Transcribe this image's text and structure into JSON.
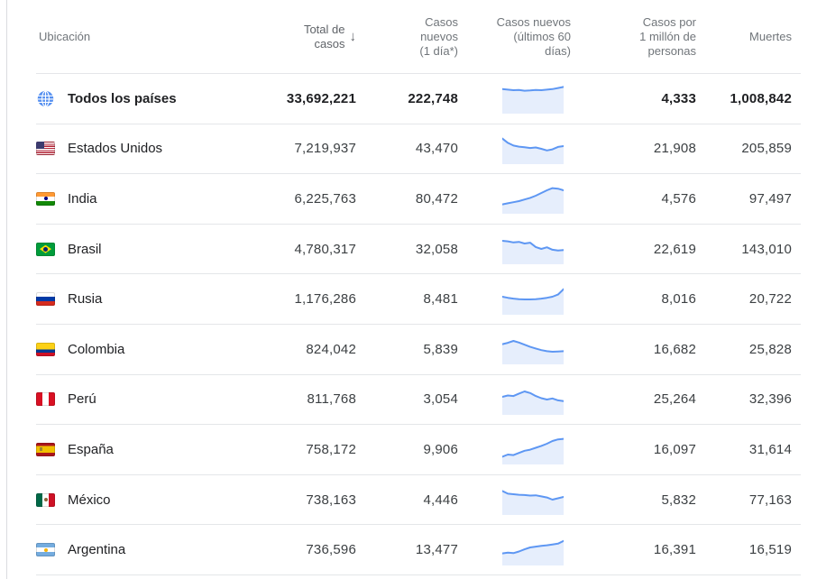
{
  "table": {
    "sort_icon": "↓",
    "columns": [
      {
        "lines": [
          "Ubicación"
        ]
      },
      {
        "lines": [
          "Total de",
          "casos"
        ],
        "sorted": true
      },
      {
        "lines": [
          "Casos",
          "nuevos",
          "(1 día*)"
        ]
      },
      {
        "lines": [
          "Casos nuevos",
          "(últimos 60",
          "días)"
        ]
      },
      {
        "lines": [
          "Casos por",
          "1 millón de",
          "personas"
        ]
      },
      {
        "lines": [
          "Muertes"
        ]
      }
    ],
    "rows": [
      {
        "location": "Todos los países",
        "flag": "globe",
        "bold": true,
        "total": "33,692,221",
        "new_1d": "222,748",
        "per_1m": "4,333",
        "deaths": "1,008,842",
        "spark": [
          0.84,
          0.82,
          0.8,
          0.81,
          0.78,
          0.79,
          0.81,
          0.8,
          0.82,
          0.84,
          0.88,
          0.92
        ]
      },
      {
        "location": "Estados Unidos",
        "flag": "us",
        "bold": false,
        "total": "7,219,937",
        "new_1d": "43,470",
        "per_1m": "21,908",
        "deaths": "205,859",
        "spark": [
          0.88,
          0.72,
          0.62,
          0.58,
          0.56,
          0.53,
          0.55,
          0.5,
          0.44,
          0.48,
          0.57,
          0.6
        ]
      },
      {
        "location": "India",
        "flag": "in",
        "bold": false,
        "total": "6,225,763",
        "new_1d": "80,472",
        "per_1m": "4,576",
        "deaths": "97,497",
        "spark": [
          0.28,
          0.32,
          0.36,
          0.4,
          0.46,
          0.52,
          0.6,
          0.7,
          0.8,
          0.88,
          0.86,
          0.8
        ]
      },
      {
        "location": "Brasil",
        "flag": "br",
        "bold": false,
        "total": "4,780,317",
        "new_1d": "32,058",
        "per_1m": "22,619",
        "deaths": "143,010",
        "spark": [
          0.8,
          0.78,
          0.74,
          0.76,
          0.7,
          0.73,
          0.57,
          0.5,
          0.56,
          0.47,
          0.44,
          0.46
        ]
      },
      {
        "location": "Rusia",
        "flag": "ru",
        "bold": false,
        "total": "1,176,286",
        "new_1d": "8,481",
        "per_1m": "8,016",
        "deaths": "20,722",
        "spark": [
          0.6,
          0.56,
          0.53,
          0.51,
          0.5,
          0.5,
          0.51,
          0.53,
          0.56,
          0.6,
          0.68,
          0.88
        ]
      },
      {
        "location": "Colombia",
        "flag": "co",
        "bold": false,
        "total": "824,042",
        "new_1d": "5,839",
        "per_1m": "16,682",
        "deaths": "25,828",
        "spark": [
          0.68,
          0.73,
          0.8,
          0.74,
          0.66,
          0.58,
          0.52,
          0.46,
          0.42,
          0.4,
          0.41,
          0.42
        ]
      },
      {
        "location": "Perú",
        "flag": "pe",
        "bold": false,
        "total": "811,768",
        "new_1d": "3,054",
        "per_1m": "25,264",
        "deaths": "32,396",
        "spark": [
          0.6,
          0.65,
          0.63,
          0.72,
          0.8,
          0.74,
          0.63,
          0.55,
          0.5,
          0.54,
          0.47,
          0.44
        ]
      },
      {
        "location": "España",
        "flag": "es",
        "bold": false,
        "total": "758,172",
        "new_1d": "9,906",
        "per_1m": "16,097",
        "deaths": "31,614",
        "spark": [
          0.22,
          0.3,
          0.28,
          0.36,
          0.44,
          0.48,
          0.55,
          0.62,
          0.7,
          0.8,
          0.86,
          0.88
        ]
      },
      {
        "location": "México",
        "flag": "mx",
        "bold": false,
        "total": "738,163",
        "new_1d": "4,446",
        "per_1m": "5,832",
        "deaths": "77,163",
        "spark": [
          0.82,
          0.72,
          0.7,
          0.68,
          0.67,
          0.65,
          0.66,
          0.62,
          0.58,
          0.5,
          0.55,
          0.6
        ]
      },
      {
        "location": "Argentina",
        "flag": "ar",
        "bold": false,
        "total": "736,596",
        "new_1d": "13,477",
        "per_1m": "16,391",
        "deaths": "16,519",
        "spark": [
          0.38,
          0.41,
          0.39,
          0.45,
          0.53,
          0.6,
          0.63,
          0.66,
          0.68,
          0.71,
          0.74,
          0.84
        ]
      }
    ]
  },
  "colors": {
    "spark_line": "#5e97f3",
    "spark_fill": "#e6eefc",
    "globe_blue": "#548ff0",
    "divider": "#e4e6e9",
    "header_text": "#70757a",
    "number_text": "#3c4043"
  }
}
